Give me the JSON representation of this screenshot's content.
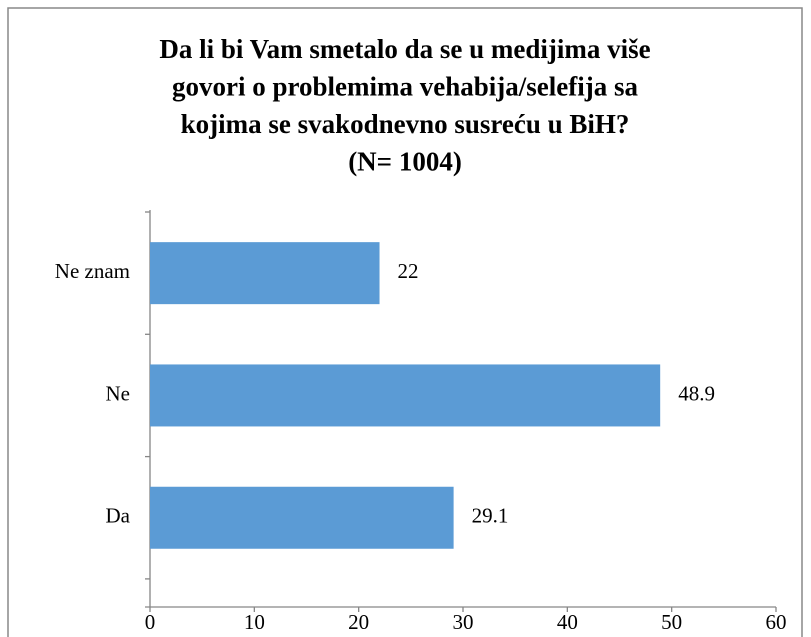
{
  "chart_data": {
    "type": "barh",
    "title": [
      "Da li bi Vam smetalo da se u medijima više",
      "govori o problemima vehabija/selefija sa",
      "kojima se svakodnevno susreću u BiH?",
      "(N= 1004)"
    ],
    "categories": [
      "Ne znam",
      "Ne",
      "Da"
    ],
    "values": [
      22,
      48.9,
      29.1
    ],
    "color": "#5b9bd5",
    "xlim": [
      0,
      60
    ],
    "xticks": [
      0,
      10,
      20,
      30,
      40,
      50,
      60
    ]
  }
}
